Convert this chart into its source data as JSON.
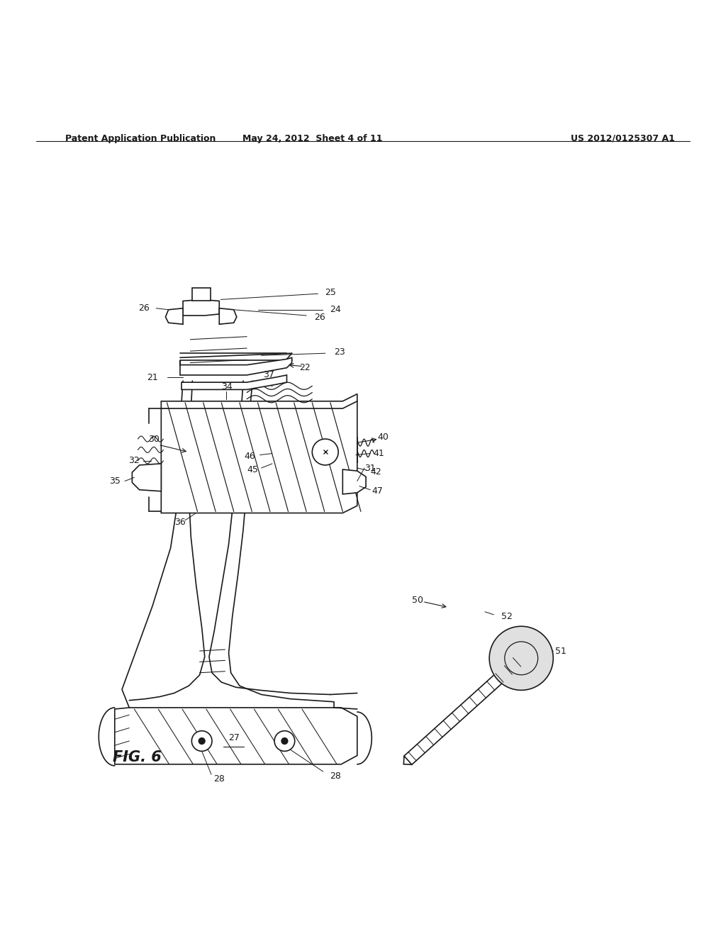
{
  "bg_color": "#ffffff",
  "line_color": "#1a1a1a",
  "header_left": "Patent Application Publication",
  "header_mid": "May 24, 2012  Sheet 4 of 11",
  "header_right": "US 2012/0125307 A1",
  "fig_label": "FIG. 6"
}
